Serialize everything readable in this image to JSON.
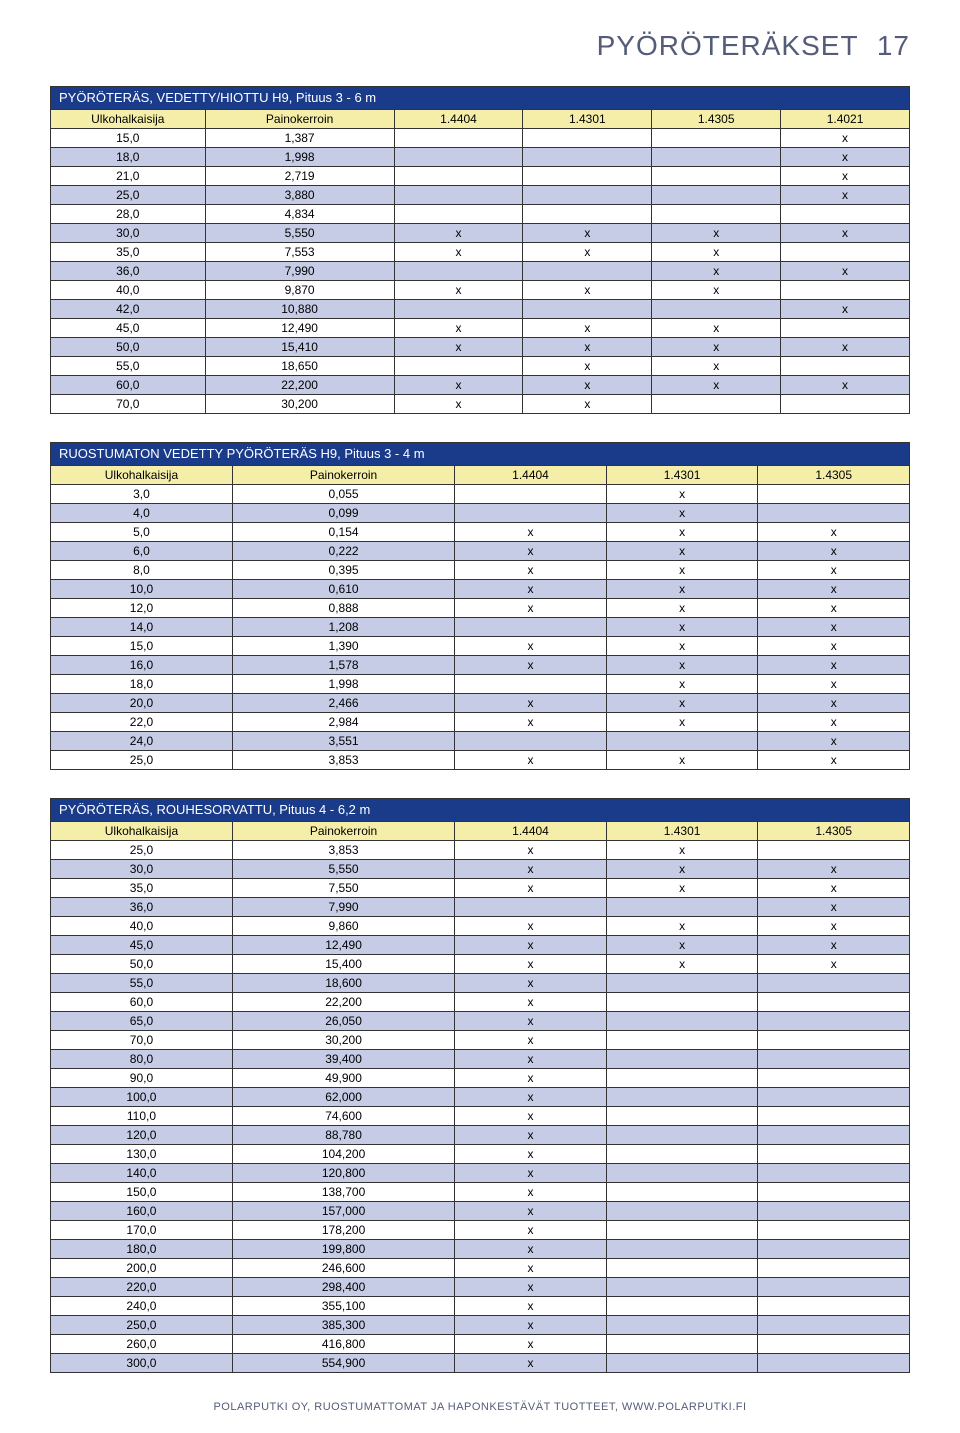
{
  "page": {
    "title": "PYÖRÖTERÄKSET",
    "number": "17",
    "footer": "POLARPUTKI OY, RUOSTUMATTOMAT JA HAPONKESTÄVÄT TUOTTEET, WWW.POLARPUTKI.FI"
  },
  "colors": {
    "title_bg": "#1a3a8a",
    "title_fg": "#ffffff",
    "header_bg": "#f5eea8",
    "row_alt_bg": "#c6cbe6",
    "row_bg": "#ffffff",
    "border": "#333333",
    "page_title": "#555c78"
  },
  "tables": [
    {
      "title": "PYÖRÖTERÄS, VEDETTY/HIOTTU H9, Pituus 3 - 6 m",
      "cols": [
        "Ulkohalkaisija",
        "Painokerroin",
        "1.4404",
        "1.4301",
        "1.4305",
        "1.4021"
      ],
      "rows": [
        [
          "15,0",
          "1,387",
          "",
          "",
          "",
          "x"
        ],
        [
          "18,0",
          "1,998",
          "",
          "",
          "",
          "x"
        ],
        [
          "21,0",
          "2,719",
          "",
          "",
          "",
          "x"
        ],
        [
          "25,0",
          "3,880",
          "",
          "",
          "",
          "x"
        ],
        [
          "28,0",
          "4,834",
          "",
          "",
          "",
          ""
        ],
        [
          "30,0",
          "5,550",
          "x",
          "x",
          "x",
          "x"
        ],
        [
          "35,0",
          "7,553",
          "x",
          "x",
          "x",
          ""
        ],
        [
          "36,0",
          "7,990",
          "",
          "",
          "x",
          "x"
        ],
        [
          "40,0",
          "9,870",
          "x",
          "x",
          "x",
          ""
        ],
        [
          "42,0",
          "10,880",
          "",
          "",
          "",
          "x"
        ],
        [
          "45,0",
          "12,490",
          "x",
          "x",
          "x",
          ""
        ],
        [
          "50,0",
          "15,410",
          "x",
          "x",
          "x",
          "x"
        ],
        [
          "55,0",
          "18,650",
          "",
          "x",
          "x",
          ""
        ],
        [
          "60,0",
          "22,200",
          "x",
          "x",
          "x",
          "x"
        ],
        [
          "70,0",
          "30,200",
          "x",
          "x",
          "",
          ""
        ]
      ]
    },
    {
      "title": "RUOSTUMATON VEDETTY PYÖRÖTERÄS H9,  Pituus 3 - 4 m",
      "cols": [
        "Ulkohalkaisija",
        "Painokerroin",
        "1.4404",
        "1.4301",
        "1.4305"
      ],
      "rows": [
        [
          "3,0",
          "0,055",
          "",
          "x",
          ""
        ],
        [
          "4,0",
          "0,099",
          "",
          "x",
          ""
        ],
        [
          "5,0",
          "0,154",
          "x",
          "x",
          "x"
        ],
        [
          "6,0",
          "0,222",
          "x",
          "x",
          "x"
        ],
        [
          "8,0",
          "0,395",
          "x",
          "x",
          "x"
        ],
        [
          "10,0",
          "0,610",
          "x",
          "x",
          "x"
        ],
        [
          "12,0",
          "0,888",
          "x",
          "x",
          "x"
        ],
        [
          "14,0",
          "1,208",
          "",
          "x",
          "x"
        ],
        [
          "15,0",
          "1,390",
          "x",
          "x",
          "x"
        ],
        [
          "16,0",
          "1,578",
          "x",
          "x",
          "x"
        ],
        [
          "18,0",
          "1,998",
          "",
          "x",
          "x"
        ],
        [
          "20,0",
          "2,466",
          "x",
          "x",
          "x"
        ],
        [
          "22,0",
          "2,984",
          "x",
          "x",
          "x"
        ],
        [
          "24,0",
          "3,551",
          "",
          "",
          "x"
        ],
        [
          "25,0",
          "3,853",
          "x",
          "x",
          "x"
        ]
      ]
    },
    {
      "title": "PYÖRÖTERÄS, ROUHESORVATTU, Pituus 4 - 6,2 m",
      "cols": [
        "Ulkohalkaisija",
        "Painokerroin",
        "1.4404",
        "1.4301",
        "1.4305"
      ],
      "rows": [
        [
          "25,0",
          "3,853",
          "x",
          "x",
          ""
        ],
        [
          "30,0",
          "5,550",
          "x",
          "x",
          "x"
        ],
        [
          "35,0",
          "7,550",
          "x",
          "x",
          "x"
        ],
        [
          "36,0",
          "7,990",
          "",
          "",
          "x"
        ],
        [
          "40,0",
          "9,860",
          "x",
          "x",
          "x"
        ],
        [
          "45,0",
          "12,490",
          "x",
          "x",
          "x"
        ],
        [
          "50,0",
          "15,400",
          "x",
          "x",
          "x"
        ],
        [
          "55,0",
          "18,600",
          "x",
          "",
          ""
        ],
        [
          "60,0",
          "22,200",
          "x",
          "",
          ""
        ],
        [
          "65,0",
          "26,050",
          "x",
          "",
          ""
        ],
        [
          "70,0",
          "30,200",
          "x",
          "",
          ""
        ],
        [
          "80,0",
          "39,400",
          "x",
          "",
          ""
        ],
        [
          "90,0",
          "49,900",
          "x",
          "",
          ""
        ],
        [
          "100,0",
          "62,000",
          "x",
          "",
          ""
        ],
        [
          "110,0",
          "74,600",
          "x",
          "",
          ""
        ],
        [
          "120,0",
          "88,780",
          "x",
          "",
          ""
        ],
        [
          "130,0",
          "104,200",
          "x",
          "",
          ""
        ],
        [
          "140,0",
          "120,800",
          "x",
          "",
          ""
        ],
        [
          "150,0",
          "138,700",
          "x",
          "",
          ""
        ],
        [
          "160,0",
          "157,000",
          "x",
          "",
          ""
        ],
        [
          "170,0",
          "178,200",
          "x",
          "",
          ""
        ],
        [
          "180,0",
          "199,800",
          "x",
          "",
          ""
        ],
        [
          "200,0",
          "246,600",
          "x",
          "",
          ""
        ],
        [
          "220,0",
          "298,400",
          "x",
          "",
          ""
        ],
        [
          "240,0",
          "355,100",
          "x",
          "",
          ""
        ],
        [
          "250,0",
          "385,300",
          "x",
          "",
          ""
        ],
        [
          "260,0",
          "416,800",
          "x",
          "",
          ""
        ],
        [
          "300,0",
          "554,900",
          "x",
          "",
          ""
        ]
      ]
    }
  ]
}
